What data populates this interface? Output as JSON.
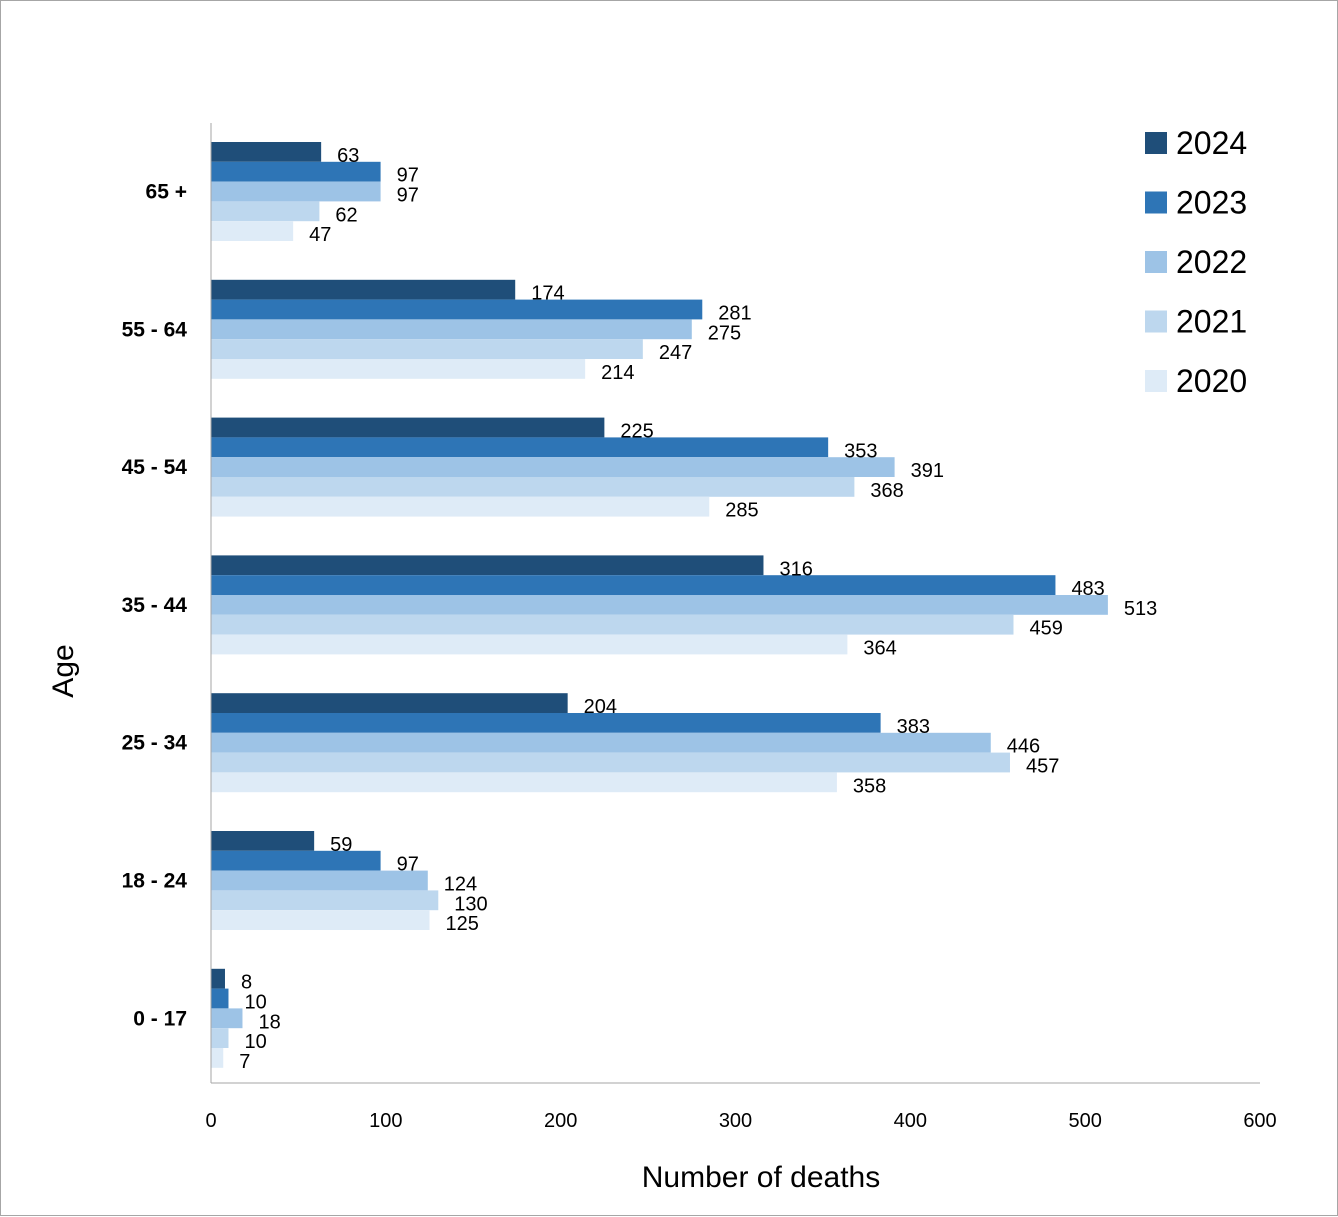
{
  "chart_data": {
    "type": "bar",
    "orientation": "horizontal",
    "categories": [
      "65 +",
      "55 - 64",
      "45 - 54",
      "35  - 44",
      "25 - 34",
      "18 - 24",
      "0  - 17"
    ],
    "series": [
      {
        "name": "2024",
        "color": "#1f4e79",
        "values": [
          63,
          174,
          225,
          316,
          204,
          59,
          8
        ]
      },
      {
        "name": "2023",
        "color": "#2e75b6",
        "values": [
          97,
          281,
          353,
          483,
          383,
          97,
          10
        ]
      },
      {
        "name": "2022",
        "color": "#9dc3e6",
        "values": [
          97,
          275,
          391,
          513,
          446,
          124,
          18
        ]
      },
      {
        "name": "2021",
        "color": "#bdd7ee",
        "values": [
          62,
          247,
          368,
          459,
          457,
          130,
          10
        ]
      },
      {
        "name": "2020",
        "color": "#deebf7",
        "values": [
          47,
          214,
          285,
          364,
          358,
          125,
          7
        ]
      }
    ],
    "xlabel": "Number of deaths",
    "ylabel": "Age",
    "xlim": [
      0,
      600
    ],
    "xticks": [
      0,
      100,
      200,
      300,
      400,
      500,
      600
    ],
    "grid": false,
    "legend_position": "top-right"
  }
}
